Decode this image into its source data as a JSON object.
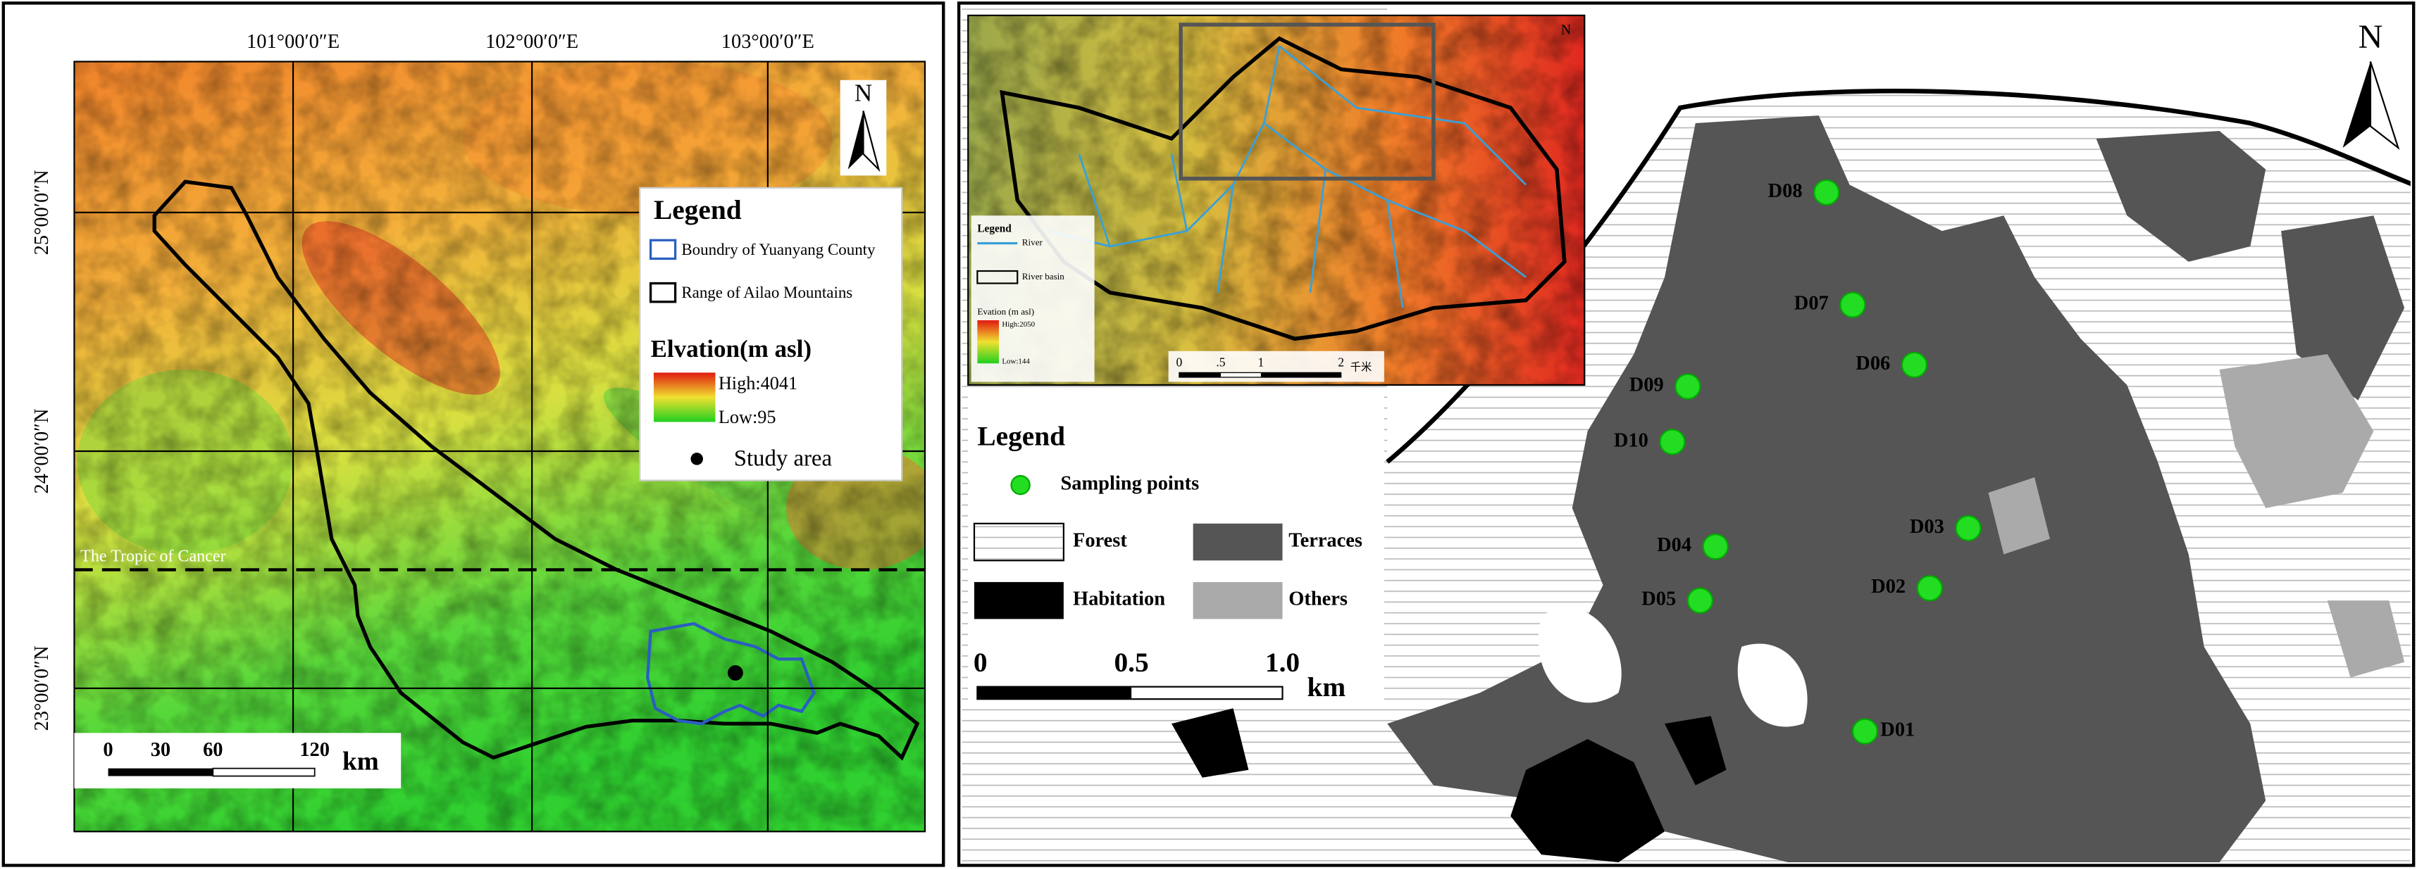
{
  "left_map": {
    "longitude_labels": [
      "101°00′0″E",
      "102°00′0″E",
      "103°00′0″E"
    ],
    "latitude_labels": [
      "25°00′0″N",
      "24°00′0″N",
      "23°00′0″N"
    ],
    "north": "N",
    "tropic_label": "The Tropic of Cancer",
    "legend": {
      "title": "Legend",
      "boundary": "Boundry of Yuanyang County",
      "range": "Range of Ailao Mountains",
      "elevation_title": "Elvation(m asl)",
      "high": "High:4041",
      "low": "Low:95",
      "study_area": "Study area"
    },
    "scale": {
      "ticks": [
        "0",
        "30",
        "60",
        "120"
      ],
      "unit": "km"
    }
  },
  "right_map": {
    "north": "N",
    "inset": {
      "north": "N",
      "legend_title": "Legend",
      "river": "River",
      "river_basin": "River basin",
      "elevation_title": "Evation (m asl)",
      "high": "High:2050",
      "low": "Low:144",
      "scale_ticks": [
        "0",
        ".5",
        "1",
        "2"
      ],
      "scale_unit": "千米"
    },
    "legend": {
      "title": "Legend",
      "sampling": "Sampling points",
      "forest": "Forest",
      "terraces": "Terraces",
      "habitation": "Habitation",
      "others": "Others"
    },
    "scale": {
      "ticks": [
        "0",
        "0.5",
        "1.0"
      ],
      "unit": "km"
    },
    "points": [
      "D01",
      "D02",
      "D03",
      "D04",
      "D05",
      "D06",
      "D07",
      "D08",
      "D09",
      "D10"
    ]
  }
}
